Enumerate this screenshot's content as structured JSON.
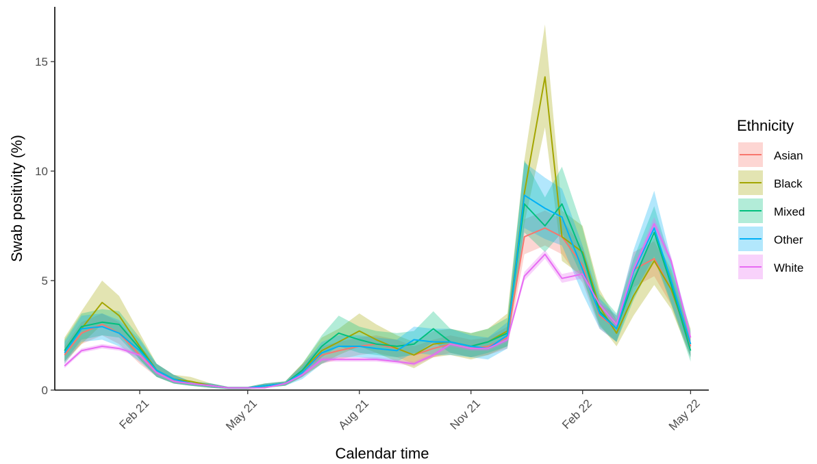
{
  "chart_data": {
    "type": "line",
    "xlabel": "Calendar time",
    "ylabel": "Swab positivity (%)",
    "x_range": [
      "2020-11-23",
      "2022-05-16"
    ],
    "ylim": [
      0,
      17.5
    ],
    "x_ticks": [
      {
        "date": "2021-02-01",
        "label": "Feb 21"
      },
      {
        "date": "2021-05-01",
        "label": "May 21"
      },
      {
        "date": "2021-08-01",
        "label": "Aug 21"
      },
      {
        "date": "2021-11-01",
        "label": "Nov 21"
      },
      {
        "date": "2022-02-01",
        "label": "Feb 22"
      },
      {
        "date": "2022-05-01",
        "label": "May 22"
      }
    ],
    "y_ticks": [
      {
        "value": 0,
        "label": "0"
      },
      {
        "value": 5,
        "label": "5"
      },
      {
        "value": 10,
        "label": "10"
      },
      {
        "value": 15,
        "label": "15"
      }
    ],
    "grid": false,
    "legend": {
      "title": "Ethnicity",
      "position": "right"
    },
    "x": [
      "2020-12-01",
      "2020-12-15",
      "2021-01-01",
      "2021-01-15",
      "2021-02-01",
      "2021-02-15",
      "2021-03-01",
      "2021-03-15",
      "2021-04-01",
      "2021-04-15",
      "2021-05-01",
      "2021-05-15",
      "2021-06-01",
      "2021-06-15",
      "2021-07-01",
      "2021-07-15",
      "2021-08-01",
      "2021-08-15",
      "2021-09-01",
      "2021-09-15",
      "2021-10-01",
      "2021-10-15",
      "2021-11-01",
      "2021-11-15",
      "2021-12-01",
      "2021-12-15",
      "2022-01-01",
      "2022-01-15",
      "2022-02-01",
      "2022-02-15",
      "2022-03-01",
      "2022-03-15",
      "2022-04-01",
      "2022-04-15",
      "2022-05-01"
    ],
    "series": [
      {
        "name": "Asian",
        "color": "#F8766D",
        "values": [
          1.6,
          2.6,
          3.0,
          2.6,
          1.6,
          0.9,
          0.5,
          0.3,
          0.2,
          0.1,
          0.1,
          0.2,
          0.3,
          0.9,
          1.6,
          1.8,
          2.0,
          2.1,
          1.9,
          1.6,
          1.9,
          2.1,
          1.9,
          2.0,
          2.4,
          7.0,
          7.4,
          7.0,
          5.7,
          3.4,
          2.8,
          5.5,
          6.0,
          4.6,
          2.0
        ],
        "lower": [
          1.2,
          2.1,
          2.5,
          2.1,
          1.2,
          0.6,
          0.3,
          0.2,
          0.1,
          0.05,
          0.05,
          0.1,
          0.2,
          0.6,
          1.2,
          1.4,
          1.6,
          1.7,
          1.5,
          1.2,
          1.5,
          1.7,
          1.5,
          1.6,
          1.9,
          6.2,
          6.6,
          6.2,
          4.9,
          2.8,
          2.2,
          4.7,
          5.2,
          3.9,
          1.5
        ],
        "upper": [
          2.0,
          3.1,
          3.5,
          3.1,
          2.0,
          1.2,
          0.7,
          0.4,
          0.3,
          0.15,
          0.15,
          0.3,
          0.4,
          1.2,
          2.0,
          2.2,
          2.4,
          2.5,
          2.3,
          2.0,
          2.3,
          2.5,
          2.3,
          2.4,
          2.9,
          7.8,
          8.2,
          7.8,
          6.5,
          4.0,
          3.4,
          6.3,
          6.8,
          5.3,
          2.5
        ]
      },
      {
        "name": "Black",
        "color": "#A3A500",
        "values": [
          1.8,
          2.8,
          4.0,
          3.4,
          2.0,
          0.9,
          0.5,
          0.4,
          0.2,
          0.1,
          0.1,
          0.2,
          0.3,
          0.9,
          1.8,
          2.2,
          2.7,
          2.3,
          1.9,
          1.6,
          2.1,
          2.2,
          2.0,
          2.2,
          2.7,
          9.0,
          14.3,
          7.0,
          6.3,
          3.8,
          2.6,
          4.3,
          5.9,
          4.6,
          2.1
        ],
        "lower": [
          1.3,
          2.1,
          3.0,
          2.6,
          1.4,
          0.6,
          0.3,
          0.2,
          0.1,
          0.05,
          0.05,
          0.1,
          0.2,
          0.6,
          1.2,
          1.6,
          2.0,
          1.7,
          1.3,
          1.0,
          1.5,
          1.6,
          1.4,
          1.6,
          2.0,
          7.6,
          12.0,
          5.9,
          5.2,
          3.0,
          2.0,
          3.4,
          4.8,
          3.7,
          1.5
        ],
        "upper": [
          2.4,
          3.6,
          5.0,
          4.3,
          2.6,
          1.2,
          0.7,
          0.6,
          0.3,
          0.15,
          0.15,
          0.3,
          0.4,
          1.2,
          2.4,
          2.8,
          3.5,
          3.0,
          2.5,
          2.2,
          2.7,
          2.8,
          2.6,
          2.8,
          3.5,
          10.5,
          16.7,
          8.2,
          7.5,
          4.6,
          3.2,
          5.2,
          7.0,
          5.5,
          2.8
        ]
      },
      {
        "name": "Mixed",
        "color": "#00BF7D",
        "values": [
          1.8,
          2.9,
          3.1,
          3.0,
          1.9,
          0.9,
          0.5,
          0.3,
          0.2,
          0.1,
          0.1,
          0.2,
          0.3,
          0.9,
          2.0,
          2.6,
          2.3,
          2.1,
          2.0,
          2.1,
          2.8,
          2.2,
          2.0,
          2.2,
          2.6,
          8.5,
          7.5,
          8.5,
          6.2,
          3.6,
          2.8,
          5.0,
          7.2,
          4.8,
          1.8
        ],
        "lower": [
          1.3,
          2.3,
          2.5,
          2.4,
          1.4,
          0.6,
          0.3,
          0.2,
          0.1,
          0.05,
          0.05,
          0.1,
          0.2,
          0.6,
          1.5,
          2.0,
          1.7,
          1.6,
          1.5,
          1.6,
          2.2,
          1.7,
          1.5,
          1.7,
          2.0,
          7.2,
          6.3,
          7.2,
          5.1,
          2.9,
          2.2,
          4.1,
          6.0,
          3.9,
          1.3
        ],
        "upper": [
          2.3,
          3.5,
          3.7,
          3.6,
          2.4,
          1.2,
          0.7,
          0.4,
          0.3,
          0.15,
          0.15,
          0.3,
          0.4,
          1.2,
          2.5,
          3.4,
          2.9,
          2.7,
          2.6,
          2.7,
          3.6,
          2.8,
          2.6,
          2.8,
          3.3,
          10.5,
          8.8,
          10.2,
          7.4,
          4.4,
          3.5,
          6.0,
          8.4,
          5.8,
          2.4
        ]
      },
      {
        "name": "Other",
        "color": "#00B0F6",
        "values": [
          1.7,
          2.8,
          2.9,
          2.6,
          1.8,
          0.9,
          0.5,
          0.3,
          0.2,
          0.1,
          0.1,
          0.2,
          0.3,
          0.8,
          1.7,
          2.0,
          2.0,
          1.9,
          1.8,
          2.3,
          2.2,
          2.2,
          2.0,
          1.9,
          2.5,
          8.9,
          8.3,
          7.9,
          5.5,
          3.5,
          2.8,
          5.4,
          7.4,
          5.0,
          2.1
        ],
        "lower": [
          1.2,
          2.2,
          2.3,
          2.0,
          1.3,
          0.6,
          0.3,
          0.2,
          0.1,
          0.05,
          0.05,
          0.1,
          0.2,
          0.5,
          1.2,
          1.5,
          1.5,
          1.4,
          1.3,
          1.7,
          1.6,
          1.6,
          1.5,
          1.4,
          1.9,
          7.4,
          6.9,
          6.6,
          4.4,
          2.8,
          2.2,
          4.4,
          6.1,
          4.0,
          1.5
        ],
        "upper": [
          2.2,
          3.4,
          3.5,
          3.2,
          2.3,
          1.2,
          0.7,
          0.4,
          0.3,
          0.15,
          0.15,
          0.3,
          0.4,
          1.1,
          2.2,
          2.5,
          2.5,
          2.4,
          2.3,
          2.9,
          2.8,
          2.8,
          2.5,
          2.4,
          3.1,
          10.4,
          9.7,
          9.2,
          6.6,
          4.2,
          3.4,
          6.4,
          9.1,
          6.0,
          2.7
        ]
      },
      {
        "name": "White",
        "color": "#E76BF3",
        "values": [
          1.1,
          1.8,
          2.0,
          1.9,
          1.6,
          0.8,
          0.4,
          0.3,
          0.2,
          0.1,
          0.1,
          0.1,
          0.3,
          0.7,
          1.4,
          1.4,
          1.4,
          1.4,
          1.3,
          1.2,
          1.6,
          2.1,
          1.9,
          1.9,
          2.3,
          5.2,
          6.2,
          5.1,
          5.3,
          3.9,
          3.0,
          5.5,
          7.6,
          5.9,
          2.4
        ],
        "lower": [
          1.0,
          1.7,
          1.9,
          1.8,
          1.5,
          0.7,
          0.35,
          0.25,
          0.15,
          0.08,
          0.08,
          0.08,
          0.25,
          0.6,
          1.3,
          1.3,
          1.3,
          1.3,
          1.2,
          1.1,
          1.5,
          2.0,
          1.8,
          1.8,
          2.2,
          5.0,
          6.0,
          4.9,
          5.1,
          3.7,
          2.8,
          5.3,
          7.3,
          5.7,
          2.2
        ],
        "upper": [
          1.2,
          1.9,
          2.1,
          2.0,
          1.7,
          0.9,
          0.45,
          0.35,
          0.25,
          0.12,
          0.12,
          0.12,
          0.35,
          0.8,
          1.5,
          1.5,
          1.5,
          1.5,
          1.4,
          1.3,
          1.7,
          2.2,
          2.0,
          2.0,
          2.4,
          5.4,
          6.4,
          5.3,
          5.5,
          4.1,
          3.2,
          5.7,
          7.9,
          6.1,
          2.6
        ]
      }
    ]
  }
}
